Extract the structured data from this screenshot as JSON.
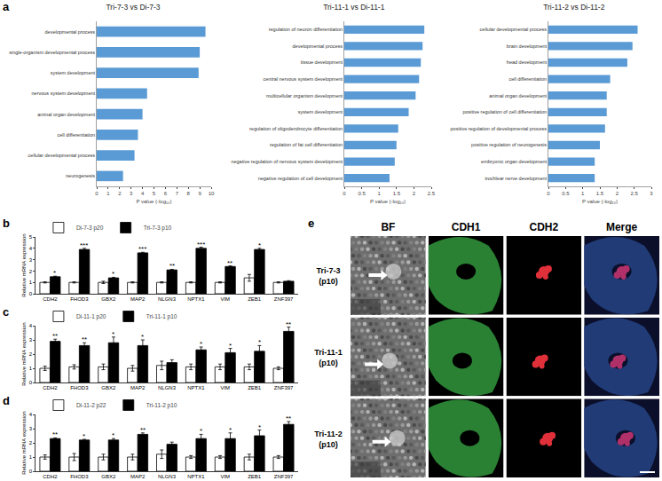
{
  "chart_data": [
    {
      "type": "bar",
      "panel_label": "a",
      "title": "Tri-7-3 vs Di-7-3",
      "orientation": "horizontal",
      "categories": [
        "developmental process",
        "single-organism developmental process",
        "system development",
        "nervous system development",
        "animal organ development",
        "cell differentiation",
        "cellular developmental process",
        "neurogenesis"
      ],
      "values": [
        9.5,
        9.0,
        8.9,
        4.4,
        4.0,
        3.6,
        3.3,
        2.3
      ],
      "color": "#5b9bd5",
      "xlabel": "P value (-log₁₀)",
      "xlim": [
        0,
        10
      ],
      "xticks": [
        0,
        1,
        2,
        3,
        4,
        5,
        6,
        7,
        8,
        9,
        10
      ],
      "grid": false
    },
    {
      "type": "bar",
      "title": "Tri-11-1 vs Di-11-1",
      "orientation": "horizontal",
      "categories": [
        "regulation of neuron differentiation",
        "developmental process",
        "tissue development",
        "central nervous system development",
        "multicellular organism development",
        "system development",
        "regulation of oligodendrocyte differentiation",
        "regulation of fat cell differentiation",
        "negative regulation of nervous system development",
        "negative regulation of cell development"
      ],
      "values": [
        2.3,
        2.25,
        2.2,
        2.15,
        2.05,
        1.85,
        1.55,
        1.5,
        1.45,
        1.3
      ],
      "color": "#5b9bd5",
      "xlabel": "P value (-log₁₀)",
      "xlim": [
        0,
        2.5
      ],
      "xticks": [
        0,
        0.5,
        1,
        1.5,
        2,
        2.5
      ],
      "grid": false
    },
    {
      "type": "bar",
      "title": "Tri-11-2 vs Di-11-2",
      "orientation": "horizontal",
      "categories": [
        "cellular developmental process",
        "brain development",
        "head development",
        "cell differentiation",
        "animal organ development",
        "positive regulation of cell differentiation",
        "positive regulation of developmental process",
        "positive regulation of neurogenesis",
        "embryonic organ development",
        "trochlear nerve development"
      ],
      "values": [
        2.6,
        2.45,
        2.3,
        1.8,
        1.7,
        1.7,
        1.65,
        1.5,
        1.35,
        1.35
      ],
      "color": "#5b9bd5",
      "xlabel": "P value (-log₁₀)",
      "xlim": [
        0,
        3
      ],
      "xticks": [
        0,
        0.5,
        1,
        1.5,
        2,
        2.5,
        3
      ],
      "grid": false
    },
    {
      "type": "bar",
      "panel_label": "b",
      "categories": [
        "CDH2",
        "FHOD3",
        "GBX2",
        "MAP2",
        "NLGN3",
        "NPTX1",
        "VIM",
        "ZEB1",
        "ZNF397"
      ],
      "ylabel": "Relative mRNA expression",
      "ylim": [
        0,
        5
      ],
      "yticks": [
        0,
        1,
        2,
        3,
        4,
        5
      ],
      "grid": false,
      "legend": "top-left",
      "series": [
        {
          "name": "Di-7-3 p20",
          "color": "#ffffff",
          "values": [
            1,
            1,
            1,
            1,
            1,
            1,
            1,
            1.4,
            1
          ],
          "error": [
            0.05,
            0.05,
            0.1,
            0.05,
            0.05,
            0.05,
            0.05,
            0.3,
            0.05
          ]
        },
        {
          "name": "Tri-7-3 p10",
          "color": "#000000",
          "values": [
            1.5,
            3.9,
            1.4,
            3.6,
            2.1,
            4.0,
            2.4,
            3.9,
            1.1
          ],
          "error": [
            0.05,
            0.1,
            0.05,
            0.05,
            0.05,
            0.1,
            0.05,
            0.1,
            0.05
          ],
          "annotations": [
            "*",
            "***",
            "*",
            "***",
            "**",
            "***",
            "**",
            "*",
            null
          ]
        }
      ]
    },
    {
      "type": "bar",
      "panel_label": "c",
      "categories": [
        "CDH2",
        "FHOD3",
        "GBX2",
        "MAP2",
        "NLGN3",
        "NPTX1",
        "VIM",
        "ZEB1",
        "ZNF397"
      ],
      "ylabel": "Relative mRNA expression",
      "ylim": [
        0,
        4
      ],
      "yticks": [
        0,
        1,
        2,
        3,
        4
      ],
      "grid": false,
      "legend": "top-left",
      "series": [
        {
          "name": "Di-11-1 p20",
          "color": "#ffffff",
          "values": [
            1,
            1.1,
            1.1,
            1,
            1.2,
            1.1,
            1.1,
            1.1,
            1
          ],
          "error": [
            0.15,
            0.15,
            0.2,
            0.2,
            0.3,
            0.2,
            0.2,
            0.2,
            0.1
          ]
        },
        {
          "name": "Tri-11-1 p10",
          "color": "#000000",
          "values": [
            2.9,
            2.6,
            2.8,
            2.6,
            1.4,
            2.3,
            2.1,
            2.2,
            3.6
          ],
          "error": [
            0.15,
            0.2,
            0.4,
            0.4,
            0.2,
            0.2,
            0.3,
            0.4,
            0.3
          ],
          "annotations": [
            "**",
            "**",
            "*",
            "*",
            null,
            "*",
            "*",
            "*",
            "**"
          ]
        }
      ]
    },
    {
      "type": "bar",
      "panel_label": "d",
      "categories": [
        "CDH2",
        "FHOD3",
        "GBX2",
        "MAP2",
        "NLGN3",
        "NPTX1",
        "VIM",
        "ZEB1",
        "ZNF397"
      ],
      "ylabel": "Relative mRNA expression",
      "ylim": [
        0,
        4
      ],
      "yticks": [
        0,
        1,
        2,
        3,
        4
      ],
      "grid": false,
      "legend": "top-left",
      "series": [
        {
          "name": "Di-11-2 p22",
          "color": "#ffffff",
          "values": [
            1,
            1,
            1,
            1,
            1.2,
            1,
            1,
            1,
            1
          ],
          "error": [
            0.15,
            0.25,
            0.2,
            0.2,
            0.3,
            0.1,
            0.1,
            0.2,
            0.1
          ]
        },
        {
          "name": "Tri-11-2 p10",
          "color": "#000000",
          "values": [
            2.3,
            2.2,
            2.2,
            2.6,
            1.9,
            2.3,
            2.3,
            2.5,
            3.3
          ],
          "error": [
            0.05,
            0.05,
            0.1,
            0.1,
            0.15,
            0.3,
            0.4,
            0.4,
            0.2
          ],
          "annotations": [
            "**",
            "*",
            "*",
            "**",
            null,
            "*",
            "*",
            "*",
            "**"
          ]
        }
      ]
    }
  ],
  "image_panel": {
    "panel_label": "e",
    "columns": [
      "BF",
      "CDH1",
      "CDH2",
      "Merge"
    ],
    "rows": [
      {
        "name": "Tri-7-3",
        "passage": "(p10)"
      },
      {
        "name": "Tri-11-1",
        "passage": "(p10)"
      },
      {
        "name": "Tri-11-2",
        "passage": "(p10)"
      }
    ]
  }
}
